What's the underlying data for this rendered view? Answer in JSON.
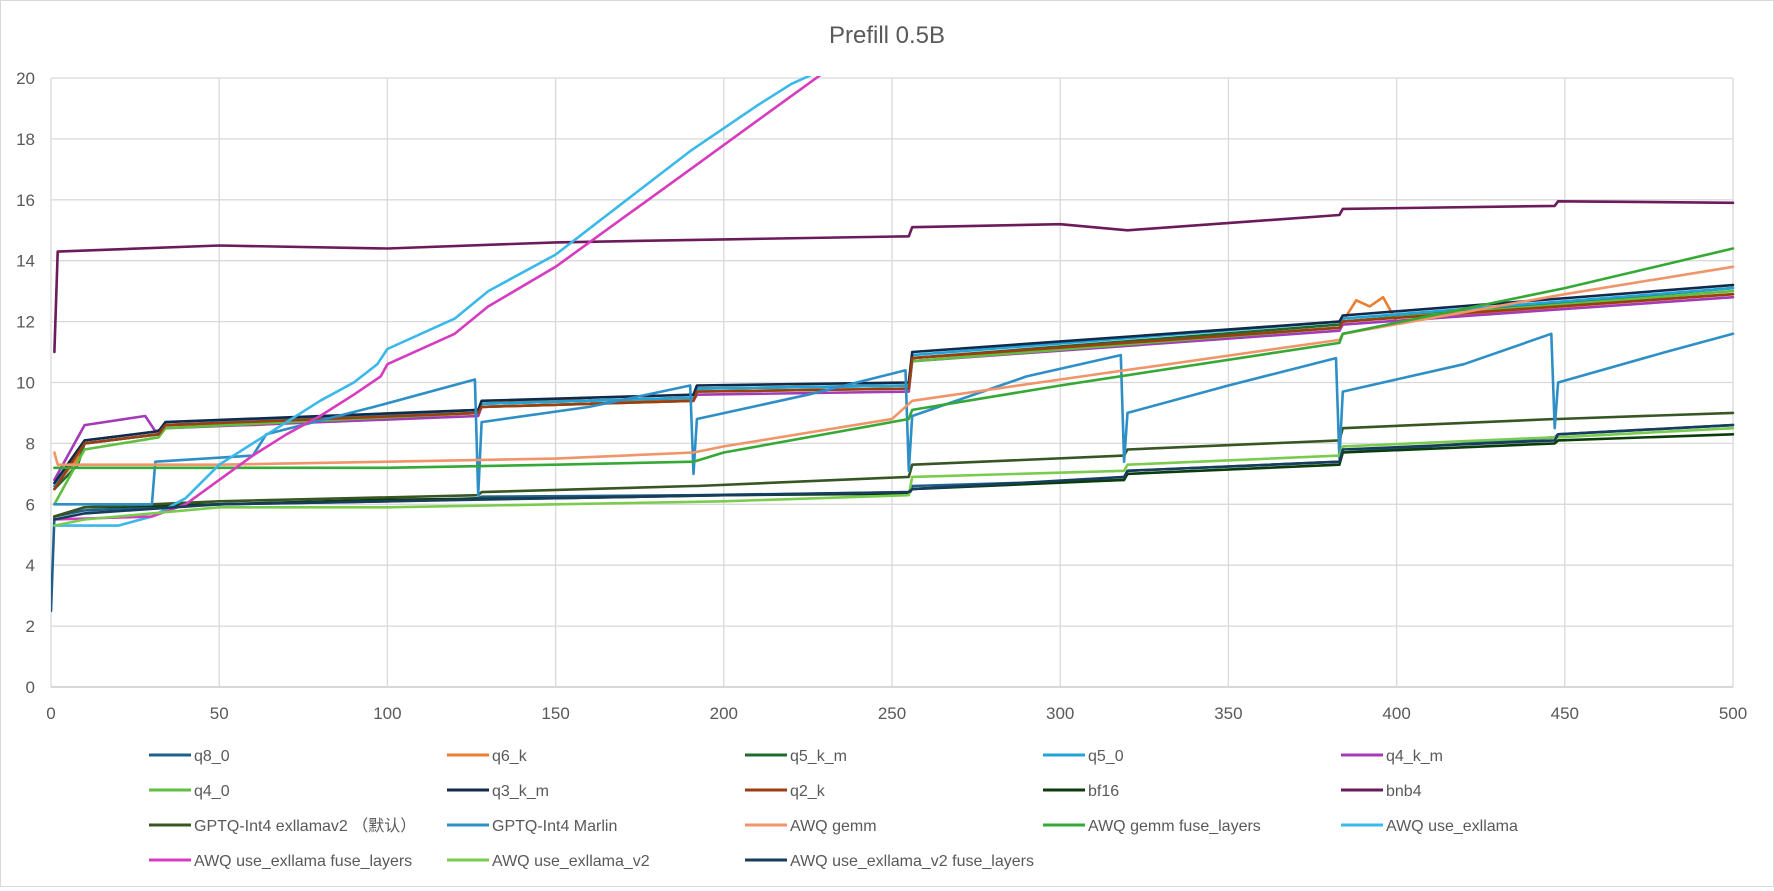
{
  "chart_data": {
    "type": "line",
    "title": "Prefill 0.5B",
    "xlabel": "",
    "ylabel": "",
    "xlim": [
      0,
      500
    ],
    "ylim": [
      0,
      20
    ],
    "x_ticks": [
      "0",
      "50",
      "100",
      "150",
      "200",
      "250",
      "300",
      "350",
      "400",
      "450",
      "500"
    ],
    "y_ticks": [
      "0",
      "2",
      "4",
      "6",
      "8",
      "10",
      "12",
      "14",
      "16",
      "18",
      "20"
    ],
    "grid": true,
    "legend_position": "bottom",
    "series": [
      {
        "name": "q8_0",
        "color": "#1f5f8b",
        "points": [
          [
            0,
            2.5
          ],
          [
            1,
            5.6
          ],
          [
            10,
            5.8
          ],
          [
            50,
            6.0
          ],
          [
            100,
            6.1
          ],
          [
            127,
            6.2
          ],
          [
            128,
            6.25
          ],
          [
            192,
            6.3
          ],
          [
            255,
            6.4
          ],
          [
            256,
            6.6
          ],
          [
            319,
            6.8
          ],
          [
            320,
            7.1
          ],
          [
            383,
            7.4
          ],
          [
            384,
            7.7
          ],
          [
            447,
            8.2
          ],
          [
            448,
            8.3
          ],
          [
            500,
            8.6
          ]
        ]
      },
      {
        "name": "q6_k",
        "color": "#ed7d31",
        "points": [
          [
            1,
            6.6
          ],
          [
            8,
            7.5
          ],
          [
            10,
            8.0
          ],
          [
            32,
            8.3
          ],
          [
            34,
            8.6
          ],
          [
            60,
            8.6
          ],
          [
            127,
            9.0
          ],
          [
            128,
            9.3
          ],
          [
            160,
            9.5
          ],
          [
            161,
            9.3
          ],
          [
            191,
            9.5
          ],
          [
            192,
            9.8
          ],
          [
            255,
            9.9
          ],
          [
            256,
            10.8
          ],
          [
            320,
            11.3
          ],
          [
            383,
            11.8
          ],
          [
            384,
            12.0
          ],
          [
            388,
            12.7
          ],
          [
            392,
            12.5
          ],
          [
            396,
            12.8
          ],
          [
            400,
            12.0
          ],
          [
            450,
            12.5
          ],
          [
            500,
            12.9
          ]
        ]
      },
      {
        "name": "q5_k_m",
        "color": "#1e6b2e",
        "points": [
          [
            1,
            6.5
          ],
          [
            8,
            7.3
          ],
          [
            10,
            8.0
          ],
          [
            32,
            8.3
          ],
          [
            34,
            8.6
          ],
          [
            127,
            9.0
          ],
          [
            128,
            9.3
          ],
          [
            191,
            9.5
          ],
          [
            192,
            9.8
          ],
          [
            255,
            9.9
          ],
          [
            256,
            10.8
          ],
          [
            383,
            11.9
          ],
          [
            384,
            12.0
          ],
          [
            500,
            13.1
          ]
        ]
      },
      {
        "name": "q5_0",
        "color": "#1fa3d9",
        "points": [
          [
            1,
            6.6
          ],
          [
            10,
            8.0
          ],
          [
            32,
            8.3
          ],
          [
            34,
            8.6
          ],
          [
            127,
            9.1
          ],
          [
            128,
            9.3
          ],
          [
            191,
            9.5
          ],
          [
            192,
            9.8
          ],
          [
            255,
            9.9
          ],
          [
            256,
            10.9
          ],
          [
            383,
            12.0
          ],
          [
            384,
            12.1
          ],
          [
            500,
            13.1
          ]
        ]
      },
      {
        "name": "q4_k_m",
        "color": "#a33ab8",
        "points": [
          [
            1,
            6.8
          ],
          [
            10,
            8.6
          ],
          [
            28,
            8.9
          ],
          [
            31,
            8.4
          ],
          [
            34,
            8.5
          ],
          [
            127,
            8.9
          ],
          [
            128,
            9.2
          ],
          [
            191,
            9.4
          ],
          [
            192,
            9.6
          ],
          [
            255,
            9.7
          ],
          [
            256,
            10.7
          ],
          [
            383,
            11.7
          ],
          [
            384,
            11.9
          ],
          [
            500,
            12.8
          ]
        ]
      },
      {
        "name": "q4_0",
        "color": "#5fbf3f",
        "points": [
          [
            1,
            6.0
          ],
          [
            10,
            7.8
          ],
          [
            32,
            8.2
          ],
          [
            34,
            8.5
          ],
          [
            127,
            9.0
          ],
          [
            128,
            9.2
          ],
          [
            191,
            9.4
          ],
          [
            192,
            9.7
          ],
          [
            255,
            9.8
          ],
          [
            256,
            10.7
          ],
          [
            383,
            11.8
          ],
          [
            384,
            12.0
          ],
          [
            500,
            13.0
          ]
        ]
      },
      {
        "name": "q3_k_m",
        "color": "#0f2a4a",
        "points": [
          [
            1,
            6.7
          ],
          [
            10,
            8.1
          ],
          [
            32,
            8.4
          ],
          [
            34,
            8.7
          ],
          [
            127,
            9.1
          ],
          [
            128,
            9.4
          ],
          [
            191,
            9.6
          ],
          [
            192,
            9.9
          ],
          [
            255,
            10.0
          ],
          [
            256,
            11.0
          ],
          [
            383,
            12.0
          ],
          [
            384,
            12.2
          ],
          [
            500,
            13.2
          ]
        ]
      },
      {
        "name": "q2_k",
        "color": "#9c3d12",
        "points": [
          [
            1,
            6.5
          ],
          [
            10,
            8.0
          ],
          [
            32,
            8.3
          ],
          [
            34,
            8.6
          ],
          [
            127,
            9.0
          ],
          [
            128,
            9.2
          ],
          [
            191,
            9.4
          ],
          [
            192,
            9.7
          ],
          [
            255,
            9.8
          ],
          [
            256,
            10.8
          ],
          [
            383,
            11.8
          ],
          [
            384,
            12.0
          ],
          [
            500,
            12.9
          ]
        ]
      },
      {
        "name": "bf16",
        "color": "#0b3d0b",
        "points": [
          [
            1,
            5.6
          ],
          [
            10,
            5.9
          ],
          [
            50,
            6.0
          ],
          [
            100,
            6.15
          ],
          [
            150,
            6.2
          ],
          [
            200,
            6.3
          ],
          [
            255,
            6.35
          ],
          [
            256,
            6.5
          ],
          [
            319,
            6.8
          ],
          [
            320,
            7.0
          ],
          [
            383,
            7.3
          ],
          [
            384,
            7.7
          ],
          [
            447,
            8.0
          ],
          [
            448,
            8.1
          ],
          [
            500,
            8.3
          ]
        ]
      },
      {
        "name": "bnb4",
        "color": "#6b1a5a",
        "points": [
          [
            1,
            11.0
          ],
          [
            2,
            14.3
          ],
          [
            50,
            14.5
          ],
          [
            100,
            14.4
          ],
          [
            150,
            14.6
          ],
          [
            200,
            14.7
          ],
          [
            255,
            14.8
          ],
          [
            256,
            15.1
          ],
          [
            300,
            15.2
          ],
          [
            320,
            15.0
          ],
          [
            383,
            15.5
          ],
          [
            384,
            15.7
          ],
          [
            447,
            15.8
          ],
          [
            448,
            15.95
          ],
          [
            500,
            15.9
          ]
        ]
      },
      {
        "name": "GPTQ-Int4 exllamav2 （默认）",
        "color": "#375623",
        "points": [
          [
            1,
            5.6
          ],
          [
            10,
            5.9
          ],
          [
            50,
            6.1
          ],
          [
            127,
            6.3
          ],
          [
            128,
            6.4
          ],
          [
            191,
            6.6
          ],
          [
            192,
            6.6
          ],
          [
            255,
            6.9
          ],
          [
            256,
            7.3
          ],
          [
            319,
            7.6
          ],
          [
            320,
            7.8
          ],
          [
            383,
            8.1
          ],
          [
            384,
            8.5
          ],
          [
            447,
            8.8
          ],
          [
            448,
            8.8
          ],
          [
            500,
            9.0
          ]
        ]
      },
      {
        "name": "GPTQ-Int4 Marlin",
        "color": "#2e8fc7",
        "points": [
          [
            1,
            6.0
          ],
          [
            30,
            6.0
          ],
          [
            31,
            7.4
          ],
          [
            60,
            7.6
          ],
          [
            64,
            8.3
          ],
          [
            96,
            9.2
          ],
          [
            126,
            10.1
          ],
          [
            127,
            6.3
          ],
          [
            128,
            8.7
          ],
          [
            160,
            9.2
          ],
          [
            190,
            9.9
          ],
          [
            191,
            7.0
          ],
          [
            192,
            8.8
          ],
          [
            225,
            9.6
          ],
          [
            254,
            10.4
          ],
          [
            255,
            7.1
          ],
          [
            256,
            8.9
          ],
          [
            290,
            10.2
          ],
          [
            318,
            10.9
          ],
          [
            319,
            7.4
          ],
          [
            320,
            9.0
          ],
          [
            350,
            9.9
          ],
          [
            382,
            10.8
          ],
          [
            383,
            7.5
          ],
          [
            384,
            9.7
          ],
          [
            420,
            10.6
          ],
          [
            446,
            11.6
          ],
          [
            447,
            8.5
          ],
          [
            448,
            10.0
          ],
          [
            480,
            11.0
          ],
          [
            500,
            11.6
          ]
        ]
      },
      {
        "name": "AWQ gemm",
        "color": "#f0956a",
        "points": [
          [
            1,
            7.7
          ],
          [
            2,
            7.3
          ],
          [
            50,
            7.3
          ],
          [
            100,
            7.4
          ],
          [
            150,
            7.5
          ],
          [
            191,
            7.7
          ],
          [
            200,
            7.9
          ],
          [
            250,
            8.8
          ],
          [
            256,
            9.4
          ],
          [
            300,
            10.1
          ],
          [
            383,
            11.4
          ],
          [
            384,
            11.6
          ],
          [
            450,
            12.9
          ],
          [
            500,
            13.8
          ]
        ]
      },
      {
        "name": "AWQ gemm fuse_layers",
        "color": "#36a836",
        "points": [
          [
            1,
            7.2
          ],
          [
            50,
            7.2
          ],
          [
            100,
            7.2
          ],
          [
            150,
            7.3
          ],
          [
            191,
            7.4
          ],
          [
            200,
            7.7
          ],
          [
            255,
            8.8
          ],
          [
            256,
            9.1
          ],
          [
            300,
            9.9
          ],
          [
            383,
            11.3
          ],
          [
            384,
            11.6
          ],
          [
            450,
            13.1
          ],
          [
            500,
            14.4
          ]
        ]
      },
      {
        "name": "AWQ use_exllama",
        "color": "#3bb8ea",
        "points": [
          [
            1,
            5.3
          ],
          [
            10,
            5.3
          ],
          [
            20,
            5.3
          ],
          [
            30,
            5.6
          ],
          [
            40,
            6.2
          ],
          [
            50,
            7.3
          ],
          [
            60,
            8.0
          ],
          [
            70,
            8.7
          ],
          [
            80,
            9.4
          ],
          [
            90,
            10.0
          ],
          [
            97,
            10.6
          ],
          [
            100,
            11.1
          ],
          [
            120,
            12.1
          ],
          [
            130,
            13.0
          ],
          [
            150,
            14.2
          ],
          [
            170,
            15.9
          ],
          [
            190,
            17.6
          ],
          [
            210,
            19.1
          ],
          [
            220,
            19.8
          ],
          [
            228,
            20.2
          ]
        ]
      },
      {
        "name": "AWQ use_exllama fuse_layers",
        "color": "#d63bc0",
        "points": [
          [
            1,
            5.5
          ],
          [
            30,
            5.6
          ],
          [
            40,
            6.0
          ],
          [
            50,
            6.8
          ],
          [
            60,
            7.6
          ],
          [
            70,
            8.3
          ],
          [
            80,
            8.9
          ],
          [
            90,
            9.6
          ],
          [
            98,
            10.2
          ],
          [
            100,
            10.6
          ],
          [
            120,
            11.6
          ],
          [
            130,
            12.5
          ],
          [
            150,
            13.8
          ],
          [
            170,
            15.4
          ],
          [
            190,
            17.0
          ],
          [
            210,
            18.6
          ],
          [
            225,
            19.8
          ],
          [
            230,
            20.2
          ]
        ]
      },
      {
        "name": "AWQ use_exllama_v2",
        "color": "#7acc4f",
        "points": [
          [
            1,
            5.3
          ],
          [
            10,
            5.5
          ],
          [
            50,
            5.9
          ],
          [
            100,
            5.9
          ],
          [
            150,
            6.0
          ],
          [
            200,
            6.1
          ],
          [
            255,
            6.3
          ],
          [
            256,
            6.9
          ],
          [
            319,
            7.1
          ],
          [
            320,
            7.3
          ],
          [
            383,
            7.6
          ],
          [
            384,
            7.9
          ],
          [
            447,
            8.2
          ],
          [
            448,
            8.2
          ],
          [
            500,
            8.5
          ]
        ]
      },
      {
        "name": "AWQ use_exllama_v2 fuse_layers",
        "color": "#163e5c",
        "points": [
          [
            1,
            5.5
          ],
          [
            10,
            5.7
          ],
          [
            50,
            6.0
          ],
          [
            100,
            6.1
          ],
          [
            150,
            6.2
          ],
          [
            200,
            6.3
          ],
          [
            255,
            6.4
          ],
          [
            256,
            6.5
          ],
          [
            319,
            6.9
          ],
          [
            320,
            7.1
          ],
          [
            383,
            7.4
          ],
          [
            384,
            7.8
          ],
          [
            447,
            8.1
          ],
          [
            448,
            8.3
          ],
          [
            500,
            8.6
          ]
        ]
      }
    ]
  }
}
